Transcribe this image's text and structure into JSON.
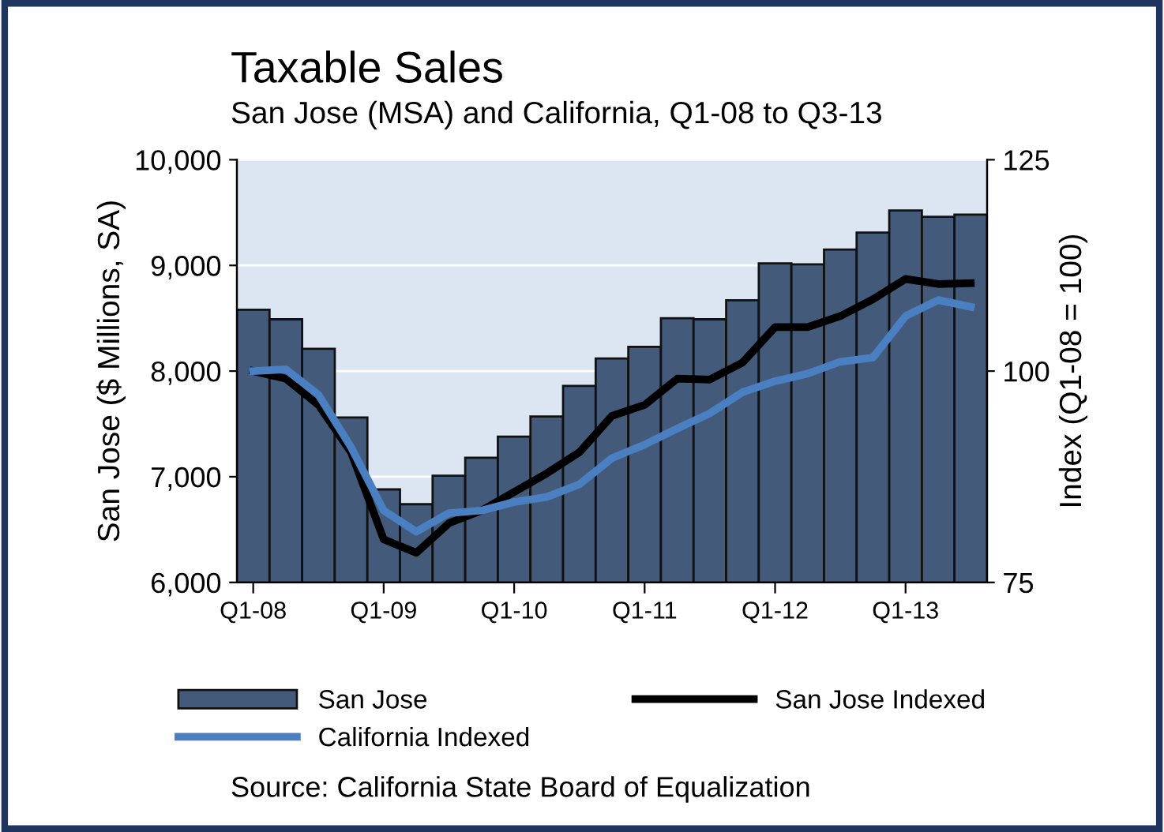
{
  "chart_data": {
    "type": "bar",
    "title": "Taxable Sales",
    "subtitle": "San Jose (MSA) and California, Q1-08 to Q3-13",
    "ylabel": "San Jose ($ Millions, SA)",
    "y2label": "Index (Q1-08 = 100)",
    "categories": [
      "Q1-08",
      null,
      null,
      null,
      "Q1-09",
      null,
      null,
      null,
      "Q1-10",
      null,
      null,
      null,
      "Q1-11",
      null,
      null,
      null,
      "Q1-12",
      null,
      null,
      null,
      "Q1-13",
      null,
      null
    ],
    "series": [
      {
        "name": "San Jose",
        "color": "#445a7a",
        "values": [
          8580,
          8490,
          8210,
          7560,
          6880,
          6740,
          7010,
          7180,
          7380,
          7570,
          7860,
          8120,
          8230,
          8500,
          8490,
          8670,
          9020,
          9010,
          9150,
          9310,
          9520,
          9460,
          9480
        ]
      },
      {
        "name": "San Jose Indexed",
        "type": "line",
        "axis": "y2",
        "color": "#000000",
        "values": [
          100,
          99.1,
          96.0,
          90.4,
          80.1,
          78.5,
          82.0,
          83.5,
          85.7,
          87.9,
          90.4,
          94.7,
          96.0,
          99.1,
          99.0,
          101.0,
          105.2,
          105.2,
          106.5,
          108.5,
          110.9,
          110.3,
          110.4
        ]
      },
      {
        "name": "California Indexed",
        "type": "line",
        "axis": "y2",
        "color": "#4a7fc1",
        "values": [
          100,
          100.2,
          97.2,
          91.0,
          83.5,
          81.0,
          83.2,
          83.5,
          84.5,
          85.1,
          86.6,
          89.7,
          91.3,
          93.2,
          95.0,
          97.5,
          98.8,
          99.7,
          101.1,
          101.6,
          106.5,
          108.4,
          107.6
        ]
      }
    ],
    "ylim": [
      6000,
      10000
    ],
    "yticks": [
      {
        "value": 6000,
        "label": "6,000"
      },
      {
        "value": 7000,
        "label": "7,000"
      },
      {
        "value": 8000,
        "label": "8,000"
      },
      {
        "value": 9000,
        "label": "9,000"
      },
      {
        "value": 10000,
        "label": "10,000"
      }
    ],
    "y2lim": [
      75,
      125
    ],
    "y2ticks": [
      75,
      100,
      125
    ],
    "grid": "y",
    "legend": "bottom",
    "marker": "none",
    "line_style": "solid",
    "annotations": [
      "Source: California State Board of Equalization"
    ]
  }
}
